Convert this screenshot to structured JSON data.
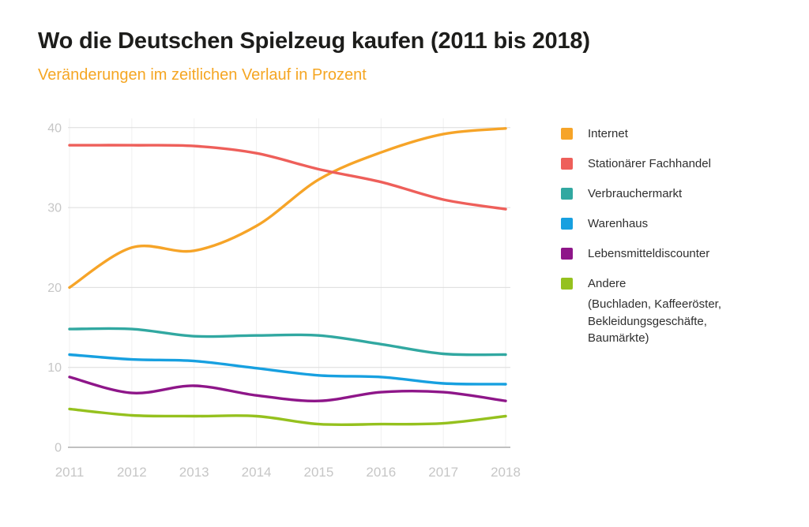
{
  "chart_data": {
    "type": "line",
    "title": "Wo die Deutschen Spielzeug kaufen (2011 bis 2018)",
    "subtitle": "Veränderungen im zeitlichen Verlauf in Prozent",
    "x": [
      2011,
      2012,
      2013,
      2014,
      2015,
      2016,
      2017,
      2018
    ],
    "xlabel": "",
    "ylabel": "",
    "ylim": [
      0,
      40
    ],
    "yticks": [
      0,
      10,
      20,
      30,
      40
    ],
    "unit": "Prozent",
    "grid": "horizontal solid + faint vertical per year",
    "curve": "smooth",
    "legend_position": "right",
    "series": [
      {
        "id": "internet",
        "name": "Internet",
        "color": "#f6a428",
        "values": [
          20.0,
          25.0,
          24.6,
          27.7,
          33.5,
          36.9,
          39.2,
          39.9
        ]
      },
      {
        "id": "stationaerer-fachhandel",
        "name": "Stationärer Fachhandel",
        "color": "#ee5f5a",
        "values": [
          37.8,
          37.8,
          37.7,
          36.8,
          34.8,
          33.2,
          31.0,
          29.8
        ]
      },
      {
        "id": "verbrauchermarkt",
        "name": "Verbrauchermarkt",
        "color": "#31a8a1",
        "values": [
          14.8,
          14.8,
          13.9,
          14.0,
          14.0,
          12.9,
          11.7,
          11.6
        ]
      },
      {
        "id": "warenhaus",
        "name": "Warenhaus",
        "color": "#17a0e0",
        "values": [
          11.6,
          11.0,
          10.8,
          9.9,
          9.0,
          8.8,
          8.0,
          7.9
        ]
      },
      {
        "id": "lebensmitteldiscounter",
        "name": "Lebensmitteldiscounter",
        "color": "#8e1689",
        "values": [
          8.8,
          6.8,
          7.7,
          6.5,
          5.8,
          6.9,
          6.9,
          5.8
        ]
      },
      {
        "id": "andere",
        "name": "Andere",
        "color": "#95c11e",
        "values": [
          4.8,
          4.0,
          3.9,
          3.9,
          2.9,
          2.9,
          3.0,
          3.9
        ],
        "note": "(Buchladen, Kaffeeröster, Bekleidungsgeschäfte, Baumärkte)"
      }
    ]
  },
  "colors": {
    "title": "#1d1d1b",
    "subtitle": "#f5a623",
    "axis_ticks": "#c6c6c6",
    "gridline": "#dcdcdc",
    "zero_line": "#c1c1c1",
    "vertical_gridline": "#f0f0f0",
    "background": "#ffffff"
  }
}
